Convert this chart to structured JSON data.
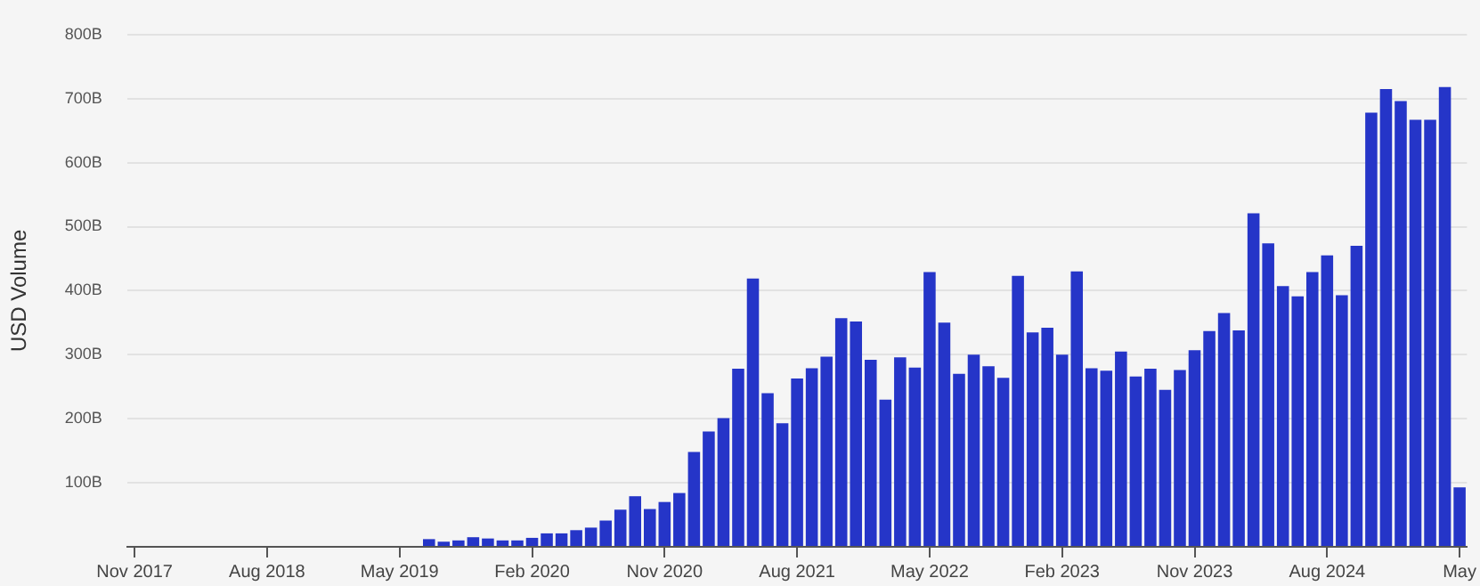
{
  "chart_data": {
    "type": "bar",
    "ylabel": "USD Volume",
    "categories": [
      "Nov 2017",
      null,
      null,
      null,
      null,
      null,
      null,
      null,
      null,
      "Aug 2018",
      null,
      null,
      null,
      null,
      null,
      null,
      null,
      null,
      "May 2019",
      null,
      null,
      null,
      null,
      null,
      null,
      null,
      null,
      "Feb 2020",
      null,
      null,
      null,
      null,
      null,
      null,
      null,
      null,
      "Nov 2020",
      null,
      null,
      null,
      null,
      null,
      null,
      null,
      null,
      "Aug 2021",
      null,
      null,
      null,
      null,
      null,
      null,
      null,
      null,
      "May 2022",
      null,
      null,
      null,
      null,
      null,
      null,
      null,
      null,
      "Feb 2023",
      null,
      null,
      null,
      null,
      null,
      null,
      null,
      null,
      "Nov 2023",
      null,
      null,
      null,
      null,
      null,
      null,
      null,
      null,
      "Aug 2024",
      null,
      null,
      null,
      null,
      null,
      null,
      null,
      null,
      "May"
    ],
    "values": [
      0,
      0,
      0,
      0,
      0,
      0,
      0,
      0,
      0,
      null,
      null,
      null,
      null,
      null,
      null,
      null,
      null,
      null,
      null,
      null,
      12,
      8,
      10,
      15,
      13,
      10,
      10,
      14,
      21,
      21,
      26,
      30,
      41,
      58,
      79,
      59,
      70,
      84,
      148,
      180,
      201,
      278,
      419,
      240,
      193,
      263,
      279,
      297,
      357,
      352,
      292,
      230,
      296,
      280,
      429,
      350,
      270,
      300,
      282,
      264,
      423,
      335,
      342,
      300,
      430,
      279,
      275,
      305,
      266,
      278,
      245,
      276,
      307,
      337,
      365,
      338,
      521,
      474,
      407,
      391,
      429,
      455,
      393,
      470,
      678,
      715,
      696,
      667,
      667,
      718,
      93
    ],
    "color": "#2535c8",
    "ylim": [
      0,
      800
    ],
    "yticks": [
      {
        "value": 0,
        "label": null
      },
      {
        "value": 100,
        "label": "100B"
      },
      {
        "value": 200,
        "label": "200B"
      },
      {
        "value": 300,
        "label": "300B"
      },
      {
        "value": 400,
        "label": "400B"
      },
      {
        "value": 500,
        "label": "500B"
      },
      {
        "value": 600,
        "label": "600B"
      },
      {
        "value": 700,
        "label": "700B"
      },
      {
        "value": 800,
        "label": "800B"
      }
    ],
    "grid": "y",
    "legend": false
  }
}
